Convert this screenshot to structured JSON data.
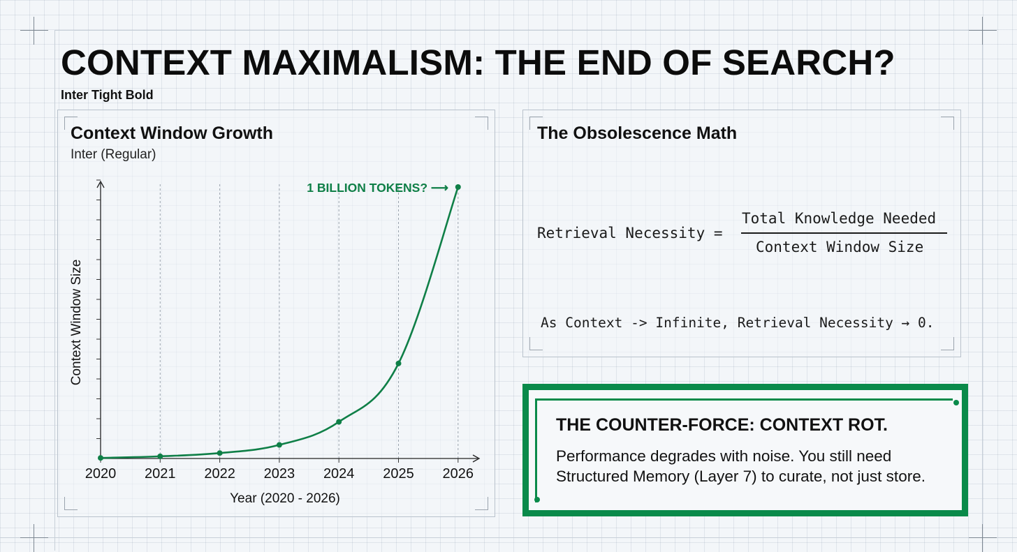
{
  "header": {
    "title": "CONTEXT MAXIMALISM: THE END OF SEARCH?",
    "font_note": "Inter Tight Bold"
  },
  "left_panel": {
    "title": "Context Window Growth",
    "subtitle": "Inter (Regular)"
  },
  "chart_data": {
    "type": "line",
    "x": [
      2020,
      2021,
      2022,
      2023,
      2024,
      2025,
      2026
    ],
    "xlabel": "Year (2020 - 2026)",
    "ylabel": "Context Window Size",
    "tick_labels": [
      "2020",
      "2021",
      "2022",
      "2023",
      "2024",
      "2025",
      "2026"
    ],
    "series": [
      {
        "values": [
          0.002,
          0.008,
          0.02,
          0.05,
          0.135,
          0.35,
          1.0
        ]
      }
    ],
    "y_unit_note": "approximate relative size; y-axis has no printed values",
    "ylim": [
      0,
      1.0
    ],
    "annotation": {
      "text": "1 BILLION TOKENS? ⟶",
      "x": 2026
    },
    "color": "#0f7f47",
    "grid": true
  },
  "right_panel": {
    "title": "The Obsolescence Math",
    "lhs": "Retrieval Necessity =",
    "numerator": "Total Knowledge Needed",
    "denominator": "Context Window Size",
    "statement": "As Context -> Infinite, Retrieval Necessity → 0."
  },
  "callout": {
    "title": "THE COUNTER-FORCE: CONTEXT ROT.",
    "body": "Performance degrades with noise. You still need Structured Memory (Layer 7) to curate, not just store.",
    "accent_color": "#0a8a4a"
  }
}
